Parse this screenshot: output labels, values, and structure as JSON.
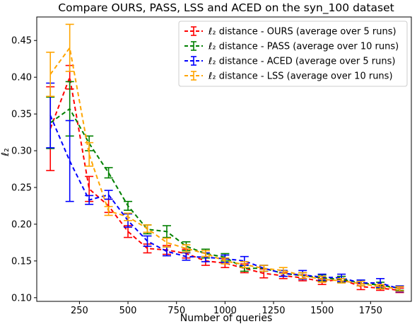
{
  "chart_data": {
    "type": "line",
    "title": "Compare OURS, PASS, LSS and ACED on the syn_100 dataset",
    "xlabel": "Number of queries",
    "ylabel": "ℓ₂",
    "xlim": [
      30,
      1960
    ],
    "ylim": [
      0.095,
      0.482
    ],
    "xticks": [
      250,
      500,
      750,
      1000,
      1250,
      1500,
      1750
    ],
    "yticks": [
      0.1,
      0.15,
      0.2,
      0.25,
      0.3,
      0.35,
      0.4,
      0.45
    ],
    "ytick_labels": [
      "0.10",
      "0.15",
      "0.20",
      "0.25",
      "0.30",
      "0.35",
      "0.40",
      "0.45"
    ],
    "grid": false,
    "legend_position": "top-right",
    "x": [
      100,
      200,
      300,
      400,
      500,
      600,
      700,
      800,
      900,
      1000,
      1100,
      1200,
      1300,
      1400,
      1500,
      1600,
      1700,
      1800,
      1900
    ],
    "series": [
      {
        "name": "ℓ₂ distance - OURS (average over 5 runs)",
        "color": "#ff0000",
        "values": [
          0.33,
          0.4,
          0.248,
          0.225,
          0.19,
          0.167,
          0.165,
          0.16,
          0.15,
          0.147,
          0.14,
          0.133,
          0.13,
          0.127,
          0.122,
          0.125,
          0.115,
          0.113,
          0.11
        ],
        "errors": [
          0.057,
          0.016,
          0.017,
          0.009,
          0.008,
          0.006,
          0.006,
          0.006,
          0.006,
          0.006,
          0.006,
          0.006,
          0.004,
          0.004,
          0.004,
          0.004,
          0.004,
          0.003,
          0.003
        ]
      },
      {
        "name": "ℓ₂ distance - PASS (average over 10 runs)",
        "color": "#008000",
        "values": [
          0.338,
          0.357,
          0.31,
          0.27,
          0.225,
          0.193,
          0.19,
          0.17,
          0.16,
          0.155,
          0.14,
          0.14,
          0.133,
          0.13,
          0.127,
          0.125,
          0.12,
          0.117,
          0.113
        ],
        "errors": [
          0.035,
          0.037,
          0.01,
          0.007,
          0.006,
          0.006,
          0.008,
          0.006,
          0.006,
          0.005,
          0.004,
          0.004,
          0.004,
          0.004,
          0.004,
          0.004,
          0.004,
          0.004,
          0.003
        ]
      },
      {
        "name": "ℓ₂ distance - ACED (average over 5 runs)",
        "color": "#0000ff",
        "values": [
          0.348,
          0.286,
          0.233,
          0.24,
          0.205,
          0.177,
          0.163,
          0.156,
          0.155,
          0.153,
          0.15,
          0.14,
          0.133,
          0.131,
          0.128,
          0.127,
          0.12,
          0.12,
          0.112
        ],
        "errors": [
          0.044,
          0.055,
          0.006,
          0.006,
          0.009,
          0.007,
          0.006,
          0.005,
          0.006,
          0.005,
          0.006,
          0.004,
          0.004,
          0.006,
          0.004,
          0.005,
          0.004,
          0.006,
          0.004
        ]
      },
      {
        "name": "ℓ₂ distance - LSS (average over 10 runs)",
        "color": "#ffa500",
        "values": [
          0.404,
          0.44,
          0.295,
          0.218,
          0.21,
          0.194,
          0.175,
          0.167,
          0.16,
          0.15,
          0.145,
          0.14,
          0.137,
          0.13,
          0.125,
          0.123,
          0.119,
          0.115,
          0.112
        ],
        "errors": [
          0.03,
          0.032,
          0.016,
          0.006,
          0.005,
          0.005,
          0.006,
          0.005,
          0.004,
          0.004,
          0.004,
          0.004,
          0.004,
          0.004,
          0.004,
          0.003,
          0.003,
          0.003,
          0.003
        ]
      }
    ]
  }
}
